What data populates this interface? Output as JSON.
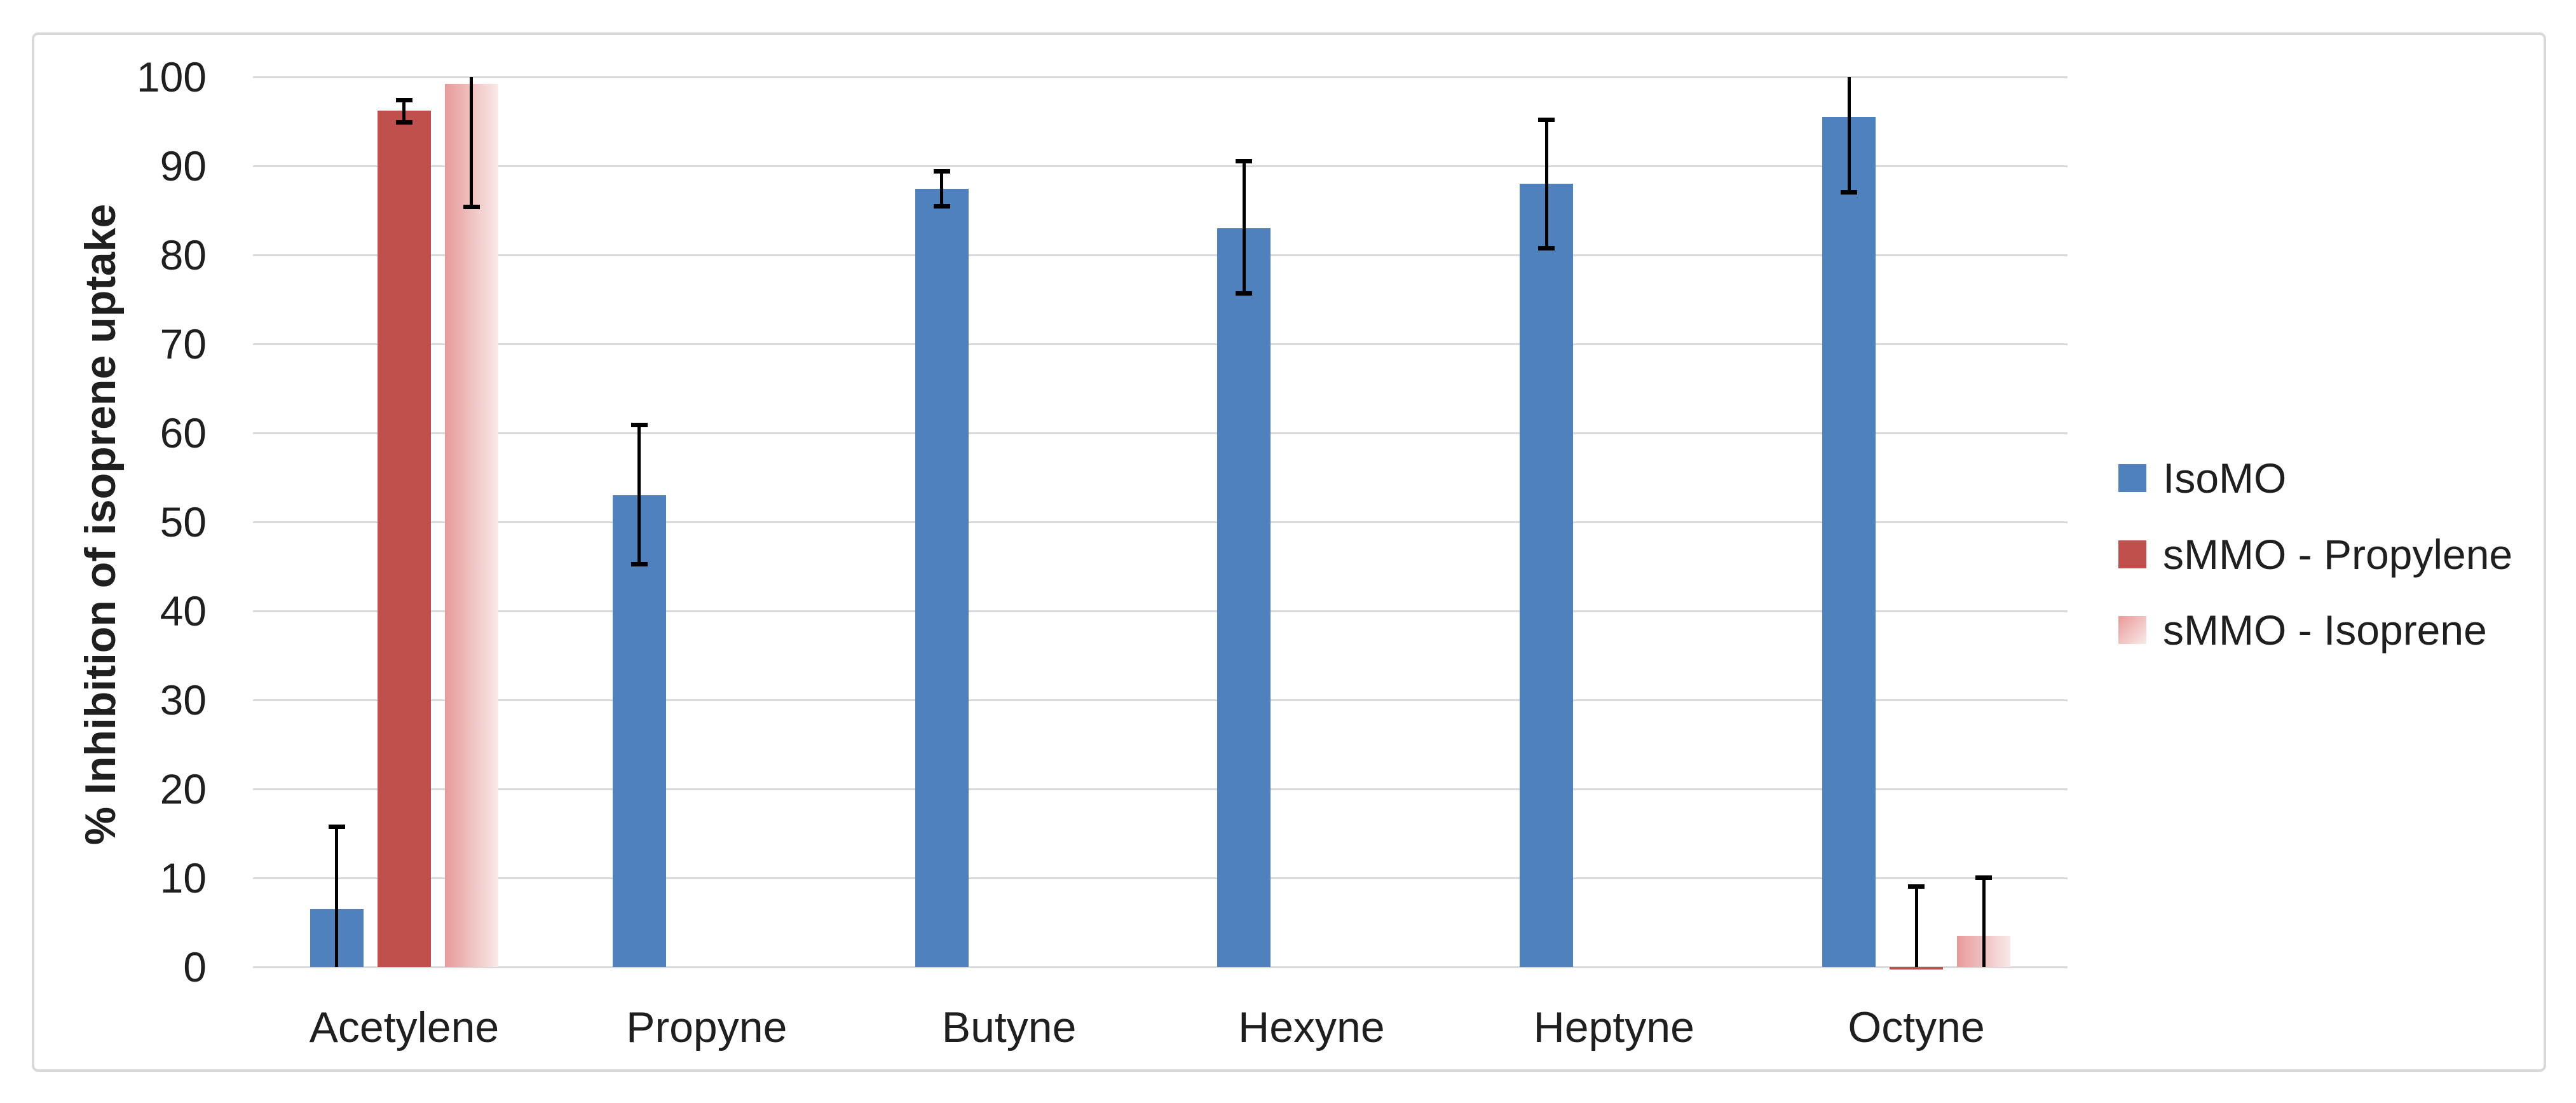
{
  "chart_data": {
    "type": "bar",
    "title": "",
    "xlabel": "",
    "ylabel": "% Inhibition of isoprene uptake",
    "ylim": [
      0,
      100
    ],
    "ytick_step": 10,
    "yticks": [
      0,
      10,
      20,
      30,
      40,
      50,
      60,
      70,
      80,
      90,
      100
    ],
    "grid": true,
    "legend_position": "right",
    "categories": [
      "Acetylene",
      "Propyne",
      "Butyne",
      "Hexyne",
      "Heptyne",
      "Octyne"
    ],
    "series": [
      {
        "name": "IsoMO",
        "color": "#4f81bd",
        "values": [
          6.5,
          53,
          87.4,
          83,
          88,
          95.5
        ],
        "errors": [
          {
            "low": 0,
            "high": 15.8,
            "cap_low": false,
            "cap_high": true
          },
          {
            "low": 45.3,
            "high": 60.9,
            "cap_low": true,
            "cap_high": true
          },
          {
            "low": 85.5,
            "high": 89.4,
            "cap_low": true,
            "cap_high": true
          },
          {
            "low": 75.7,
            "high": 90.6,
            "cap_low": true,
            "cap_high": true
          },
          {
            "low": 80.8,
            "high": 95.2,
            "cap_low": true,
            "cap_high": true
          },
          {
            "low": 87.1,
            "high": 100,
            "cap_low": true,
            "cap_high": false
          }
        ]
      },
      {
        "name": "sMMO - Propylene",
        "color": "#c0504d",
        "values": [
          96.2,
          null,
          null,
          null,
          null,
          -0.3
        ],
        "errors": [
          {
            "low": 94.9,
            "high": 97.4,
            "cap_low": true,
            "cap_high": true
          },
          null,
          null,
          null,
          null,
          {
            "low": 0,
            "high": 9.1,
            "cap_low": false,
            "cap_high": true
          }
        ]
      },
      {
        "name": "sMMO - Isoprene",
        "color": "#e89a99",
        "color2": "#f8e9e8",
        "values": [
          99.2,
          null,
          null,
          null,
          null,
          3.5
        ],
        "errors": [
          {
            "low": 85.4,
            "high": 100,
            "cap_low": true,
            "cap_high": false
          },
          null,
          null,
          null,
          null,
          {
            "low": 0,
            "high": 10.1,
            "cap_low": false,
            "cap_high": true
          }
        ]
      }
    ],
    "colors": {
      "grid": "#d9d9d9",
      "chart_border": "#d9d9d9",
      "error_bar": "#000000",
      "text": "#1f1f1f",
      "background": "#ffffff"
    }
  }
}
